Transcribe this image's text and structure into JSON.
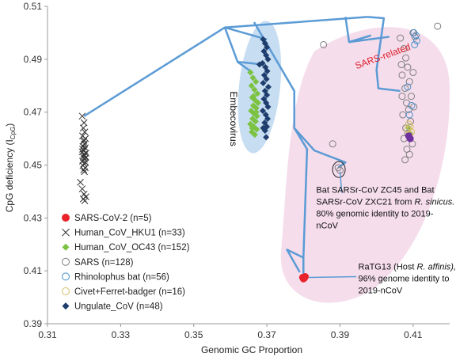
{
  "chart_data": {
    "type": "scatter",
    "xlabel": "Genomic GC Proportion",
    "ylabel": "CpG deficiency (I",
    "ylabel_sub": "CpG",
    "ylabel_close": ")",
    "xlim": [
      0.31,
      0.42
    ],
    "ylim": [
      0.39,
      0.51
    ],
    "xticks": [
      "0.31",
      "0.33",
      "0.35",
      "0.37",
      "0.39",
      "0.41"
    ],
    "xtick_values": [
      0.31,
      0.33,
      0.35,
      0.37,
      0.39,
      0.41
    ],
    "yticks": [
      "0.39",
      "0.41",
      "0.43",
      "0.45",
      "0.47",
      "0.49",
      "0.51"
    ],
    "ytick_values": [
      0.39,
      0.41,
      0.43,
      0.45,
      0.47,
      0.49,
      0.51
    ],
    "grid": false,
    "legend_position": "bottom-left",
    "colors": {
      "axis": "#999999",
      "tree": "#5b9bd5",
      "embeco_region": "#bdd7ee",
      "sars_region": "#f4d9ea",
      "sars_label": "#e0202b"
    },
    "series": [
      {
        "name": "SARS-CoV-2 (n=5)",
        "marker": "circle-filled",
        "color": "#e8232b",
        "points": [
          [
            0.3798,
            0.4075
          ],
          [
            0.3802,
            0.4072
          ],
          [
            0.3805,
            0.4078
          ],
          [
            0.38,
            0.407
          ],
          [
            0.3803,
            0.4074
          ]
        ]
      },
      {
        "name": "Human_CoV_HKU1 (n=33)",
        "marker": "x",
        "color": "#333333",
        "points": [
          [
            0.3195,
            0.4685
          ],
          [
            0.32,
            0.466
          ],
          [
            0.3198,
            0.464
          ],
          [
            0.3202,
            0.4625
          ],
          [
            0.3196,
            0.461
          ],
          [
            0.3204,
            0.46
          ],
          [
            0.3199,
            0.459
          ],
          [
            0.3201,
            0.458
          ],
          [
            0.3197,
            0.457
          ],
          [
            0.3203,
            0.4565
          ],
          [
            0.32,
            0.4555
          ],
          [
            0.3195,
            0.455
          ],
          [
            0.3205,
            0.4545
          ],
          [
            0.3199,
            0.454
          ],
          [
            0.3202,
            0.4535
          ],
          [
            0.3198,
            0.453
          ],
          [
            0.3201,
            0.4522
          ],
          [
            0.3196,
            0.4515
          ],
          [
            0.3204,
            0.451
          ],
          [
            0.32,
            0.4505
          ],
          [
            0.3197,
            0.4498
          ],
          [
            0.3203,
            0.449
          ],
          [
            0.3199,
            0.4482
          ],
          [
            0.3201,
            0.4475
          ],
          [
            0.319,
            0.4435
          ],
          [
            0.3195,
            0.441
          ],
          [
            0.32,
            0.439
          ],
          [
            0.3205,
            0.438
          ],
          [
            0.3198,
            0.4372
          ],
          [
            0.3202,
            0.4365
          ],
          [
            0.32,
            0.4595
          ],
          [
            0.3196,
            0.456
          ],
          [
            0.3204,
            0.4528
          ]
        ]
      },
      {
        "name": "Human_CoV_OC43 (n=152)",
        "marker": "diamond-filled",
        "color": "#7cc242",
        "points": [
          [
            0.3655,
            0.485
          ],
          [
            0.3662,
            0.483
          ],
          [
            0.367,
            0.4815
          ],
          [
            0.3658,
            0.48
          ],
          [
            0.3666,
            0.4785
          ],
          [
            0.3674,
            0.477
          ],
          [
            0.366,
            0.4755
          ],
          [
            0.3668,
            0.4745
          ],
          [
            0.3676,
            0.4735
          ],
          [
            0.3663,
            0.4725
          ],
          [
            0.3671,
            0.4715
          ],
          [
            0.3657,
            0.4705
          ],
          [
            0.3665,
            0.4695
          ],
          [
            0.3673,
            0.4685
          ],
          [
            0.3661,
            0.4675
          ],
          [
            0.3669,
            0.4665
          ],
          [
            0.3655,
            0.4655
          ],
          [
            0.3664,
            0.4645
          ],
          [
            0.3672,
            0.4635
          ],
          [
            0.3659,
            0.4625
          ],
          [
            0.3667,
            0.4615
          ],
          [
            0.3663,
            0.476
          ],
          [
            0.3671,
            0.47
          ],
          [
            0.366,
            0.464
          ],
          [
            0.4088,
            0.464
          ],
          [
            0.4092,
            0.462
          ],
          [
            0.409,
            0.46
          ]
        ]
      },
      {
        "name": "SARS (n=128)",
        "marker": "circle-open",
        "color": "#7f7f7f",
        "points": [
          [
            0.3855,
            0.4955
          ],
          [
            0.4065,
            0.498
          ],
          [
            0.4075,
            0.494
          ],
          [
            0.408,
            0.4905
          ],
          [
            0.4085,
            0.487
          ],
          [
            0.407,
            0.484
          ],
          [
            0.409,
            0.4815
          ],
          [
            0.4078,
            0.479
          ],
          [
            0.4095,
            0.476
          ],
          [
            0.4082,
            0.4735
          ],
          [
            0.4088,
            0.471
          ],
          [
            0.4072,
            0.469
          ],
          [
            0.4093,
            0.4665
          ],
          [
            0.408,
            0.464
          ],
          [
            0.4086,
            0.462
          ],
          [
            0.4075,
            0.46
          ],
          [
            0.4098,
            0.458
          ],
          [
            0.4083,
            0.456
          ],
          [
            0.409,
            0.454
          ],
          [
            0.4078,
            0.452
          ],
          [
            0.41,
            0.5
          ],
          [
            0.4105,
            0.4985
          ],
          [
            0.4068,
            0.488
          ],
          [
            0.41,
            0.485
          ],
          [
            0.4102,
            0.472
          ],
          [
            0.4167,
            0.5025
          ],
          [
            0.3895,
            0.449
          ],
          [
            0.39,
            0.448
          ],
          [
            0.388,
            0.458
          ],
          [
            0.407,
            0.476
          ]
        ]
      },
      {
        "name": "Rhinolophus bat (n=56)",
        "marker": "circle-open",
        "color": "#4a90c8",
        "points": [
          [
            0.4102,
            0.5
          ],
          [
            0.4108,
            0.499
          ],
          [
            0.411,
            0.497
          ],
          [
            0.4104,
            0.4955
          ],
          [
            0.4085,
            0.4795
          ],
          [
            0.4096,
            0.4725
          ],
          [
            0.409,
            0.469
          ]
        ]
      },
      {
        "name": "Civet+Ferret-badger (n=16)",
        "marker": "circle-open",
        "color": "#d4c060",
        "points": [
          [
            0.4088,
            0.4655
          ],
          [
            0.4092,
            0.4645
          ],
          [
            0.4085,
            0.4635
          ],
          [
            0.4095,
            0.4625
          ],
          [
            0.409,
            0.4615
          ]
        ]
      },
      {
        "name": "Ungulate_CoV (n=48)",
        "marker": "diamond-filled",
        "color": "#1f3e6e",
        "points": [
          [
            0.369,
            0.4975
          ],
          [
            0.3695,
            0.496
          ],
          [
            0.37,
            0.4945
          ],
          [
            0.3692,
            0.493
          ],
          [
            0.3698,
            0.4915
          ],
          [
            0.3703,
            0.49
          ],
          [
            0.3688,
            0.4885
          ],
          [
            0.3696,
            0.487
          ],
          [
            0.3701,
            0.4855
          ],
          [
            0.3693,
            0.484
          ],
          [
            0.3699,
            0.4825
          ],
          [
            0.369,
            0.481
          ],
          [
            0.3704,
            0.4795
          ],
          [
            0.3695,
            0.478
          ],
          [
            0.37,
            0.4765
          ],
          [
            0.3692,
            0.475
          ],
          [
            0.3698,
            0.4735
          ],
          [
            0.3703,
            0.472
          ],
          [
            0.3689,
            0.4705
          ],
          [
            0.3697,
            0.469
          ],
          [
            0.3702,
            0.4675
          ],
          [
            0.3694,
            0.466
          ],
          [
            0.37,
            0.4645
          ],
          [
            0.3695,
            0.463
          ],
          [
            0.3698,
            0.4605
          ],
          [
            0.368,
            0.488
          ],
          [
            0.369,
            0.464
          ]
        ]
      },
      {
        "name": "",
        "marker": "circle-filled",
        "color": "#7030a0",
        "points": [
          [
            0.4088,
            0.461
          ],
          [
            0.4092,
            0.46
          ]
        ]
      }
    ],
    "tree_lines": [
      [
        [
          0.32,
          0.4685
        ],
        [
          0.3585,
          0.502
        ],
        [
          0.3975,
          0.506
        ]
      ],
      [
        [
          0.3585,
          0.502
        ],
        [
          0.362,
          0.489
        ],
        [
          0.366,
          0.485
        ]
      ],
      [
        [
          0.362,
          0.489
        ],
        [
          0.369,
          0.488
        ]
      ],
      [
        [
          0.3585,
          0.502
        ],
        [
          0.37,
          0.4975
        ]
      ],
      [
        [
          0.3665,
          0.504
        ],
        [
          0.3775,
          0.478
        ],
        [
          0.3775,
          0.464
        ],
        [
          0.381,
          0.456
        ],
        [
          0.38,
          0.415
        ],
        [
          0.38,
          0.4075
        ]
      ],
      [
        [
          0.3775,
          0.464
        ],
        [
          0.383,
          0.4555
        ],
        [
          0.3915,
          0.451
        ],
        [
          0.3895,
          0.449
        ]
      ],
      [
        [
          0.38,
          0.415
        ],
        [
          0.3755,
          0.418
        ],
        [
          0.379,
          0.4095
        ]
      ],
      [
        [
          0.3915,
          0.506
        ],
        [
          0.3925,
          0.4965
        ],
        [
          0.4035,
          0.4985
        ]
      ],
      [
        [
          0.3925,
          0.4965
        ],
        [
          0.3985,
          0.499
        ]
      ],
      [
        [
          0.3975,
          0.506
        ],
        [
          0.402,
          0.5055
        ],
        [
          0.4,
          0.486
        ],
        [
          0.4005,
          0.479
        ],
        [
          0.4065,
          0.478
        ]
      ]
    ],
    "region_labels": [
      {
        "text": "Embecovirus",
        "x": 0.36,
        "y": 0.4675,
        "rotate": 90
      },
      {
        "text": "SARS-related",
        "x": 0.402,
        "y": 0.49,
        "rotate": -20
      }
    ],
    "annotations": [
      {
        "lines": [
          "Bat SARSr-CoV ZC45 and Bat",
          "SARSr-CoV ZXC21 from ",
          "80% genomic identity to 2019-",
          "nCoV"
        ],
        "italic_suffix": [
          "",
          "R. sinicus.",
          "",
          ""
        ],
        "x": 0.3835,
        "y": 0.4395,
        "arrow_from": [
          0.3905,
          0.4395
        ],
        "arrow_to": [
          0.39,
          0.4475
        ],
        "circle": [
          0.3897,
          0.4483
        ]
      },
      {
        "lines": [
          "RaTG13 (Host ",
          "96% genome identity to",
          "2019-nCoV"
        ],
        "italic_suffix": [
          "R. affinis),",
          "",
          ""
        ],
        "x": 0.395,
        "y": 0.4105,
        "arrow_from": [
          0.3945,
          0.4078
        ],
        "arrow_to": [
          0.3815,
          0.4075
        ]
      }
    ]
  }
}
